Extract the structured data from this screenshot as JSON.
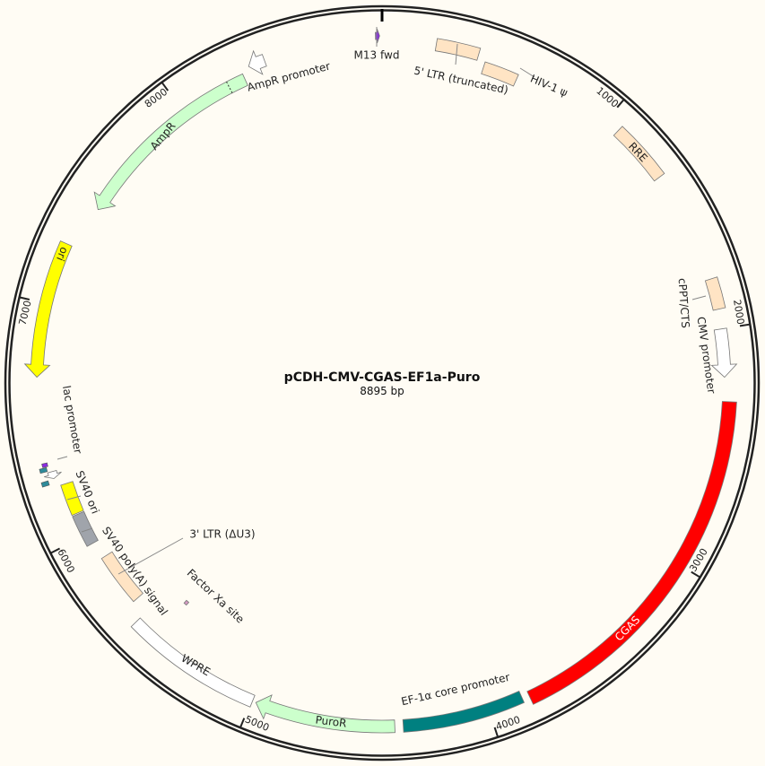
{
  "plasmid": {
    "name": "pCDH-CMV-CGAS-EF1a-Puro",
    "length_label": "8895 bp",
    "length_bp": 8895
  },
  "ticks": [
    "1000",
    "2000",
    "3000",
    "4000",
    "5000",
    "6000",
    "7000",
    "8000"
  ],
  "features": [
    {
      "label": "M13 fwd",
      "start": 8868,
      "end": 8885,
      "color": "#8a2be2",
      "dir": 1
    },
    {
      "label": "5' LTR (truncated)",
      "start": 225,
      "end": 405,
      "color": "#ffe4c4",
      "dir": 0
    },
    {
      "label": "HIV-1 ψ",
      "start": 440,
      "end": 590,
      "color": "#ffe4c4",
      "dir": 0
    },
    {
      "label": "RRE",
      "start": 1065,
      "end": 1320,
      "color": "#ffe4c4",
      "dir": 0
    },
    {
      "label": "cPPT/CTS",
      "start": 1790,
      "end": 1918,
      "color": "#ffe4c4",
      "dir": 0
    },
    {
      "label": "CMV promoter",
      "start": 2000,
      "end": 2200,
      "color": "#ffffff",
      "dir": 1
    },
    {
      "label": "CGAS",
      "start": 2300,
      "end": 3825,
      "color": "#ff0000",
      "dir": 0
    },
    {
      "label": "EF-1α core promoter",
      "start": 3855,
      "end": 4360,
      "color": "#008080",
      "dir": 0
    },
    {
      "label": "PuroR",
      "start": 4395,
      "end": 4980,
      "color": "#ccffcc",
      "dir": 1
    },
    {
      "label": "WPRE",
      "start": 4995,
      "end": 5580,
      "color": "#ffffff",
      "dir": 0
    },
    {
      "label": "Factor Xa site",
      "start": 5470,
      "end": 5485,
      "color": "#d79bc4",
      "dir": 0
    },
    {
      "label": "3' LTR (ΔU3)",
      "start": 5650,
      "end": 5880,
      "color": "#ffe4c4",
      "dir": 0
    },
    {
      "label": "SV40 poly(A) signal",
      "start": 5955,
      "end": 6095,
      "color": "#a0a4ab",
      "dir": 0
    },
    {
      "label": "SV40 ori",
      "start": 6100,
      "end": 6235,
      "color": "#ffff00",
      "dir": 0
    },
    {
      "label": "lac promoter",
      "start": 6270,
      "end": 6300,
      "color": "#ffffff",
      "dir": -1
    },
    {
      "label": "ori",
      "start": 6695,
      "end": 7260,
      "color": "#ffff00",
      "dir": -1
    },
    {
      "label": "AmpR",
      "start": 7447,
      "end": 8295,
      "color": "#ccffcc",
      "dir": -1
    },
    {
      "label": "AmpR promoter",
      "start": 8330,
      "end": 8400,
      "color": "#ffffff",
      "dir": -1
    }
  ],
  "minor_features": [
    {
      "start": 6250,
      "end": 6268,
      "color": "#2e8b9a"
    },
    {
      "start": 6305,
      "end": 6322,
      "color": "#2e8b9a"
    },
    {
      "start": 6325,
      "end": 6340,
      "color": "#8a2be2"
    }
  ]
}
